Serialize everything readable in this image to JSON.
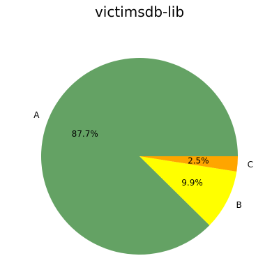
{
  "chart_data": {
    "type": "pie",
    "title": "victimsdb-lib",
    "slices": [
      {
        "label": "A",
        "value": 87.7,
        "pct_label": "87.7%",
        "color": "#64a264"
      },
      {
        "label": "B",
        "value": 9.9,
        "pct_label": "9.9%",
        "color": "#ffff00"
      },
      {
        "label": "C",
        "value": 2.5,
        "pct_label": "2.5%",
        "color": "#ffa500"
      }
    ],
    "start_angle_deg": 0,
    "direction": "counterclockwise",
    "legend": "none"
  }
}
